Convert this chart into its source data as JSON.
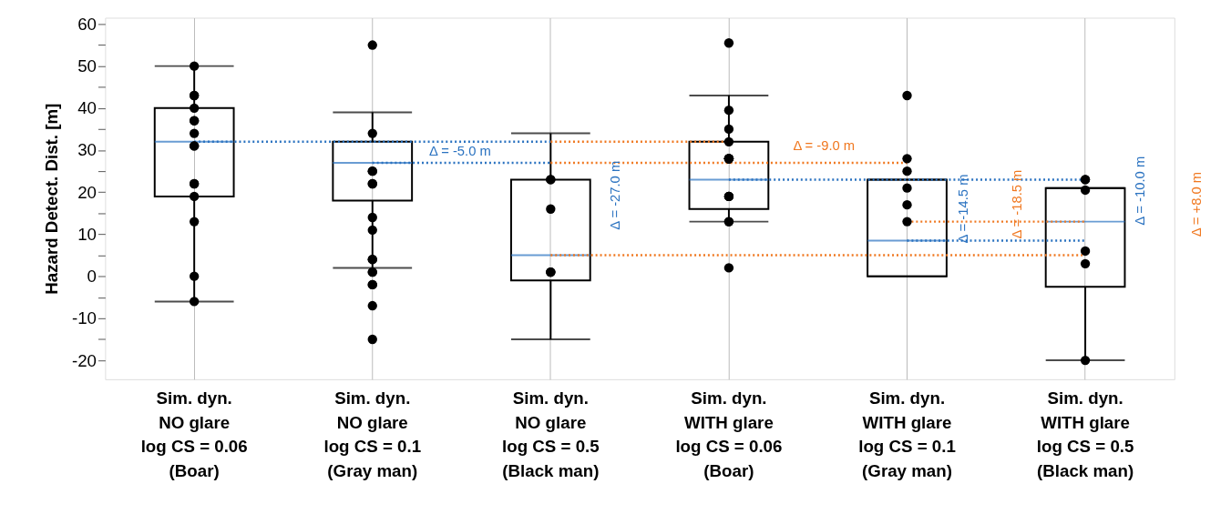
{
  "chart_data": {
    "type": "box",
    "ylabel": "Hazard Detect. Dist. [m]",
    "categories": [
      "Sim. dyn.\nNO glare\nlog CS = 0.06\n(Boar)",
      "Sim. dyn.\nNO glare\nlog CS = 0.1\n(Gray man)",
      "Sim. dyn.\nNO glare\nlog CS = 0.5\n(Black man)",
      "Sim. dyn.\nWITH glare\nlog CS = 0.06\n(Boar)",
      "Sim. dyn.\nWITH glare\nlog CS = 0.1\n(Gray man)",
      "Sim. dyn.\nWITH glare\nlog CS = 0.5\n(Black man)"
    ],
    "ylim": [
      -24.5,
      61.5
    ],
    "yticks": [
      -20,
      {
        "value": -15,
        "label": null
      },
      -10,
      {
        "value": -5,
        "label": null
      },
      0,
      {
        "value": 5,
        "label": null
      },
      10,
      {
        "value": 15,
        "label": null
      },
      20,
      {
        "value": 25,
        "label": null
      },
      30,
      {
        "value": 35,
        "label": null
      },
      40,
      {
        "value": 45,
        "label": null
      },
      50,
      {
        "value": 55,
        "label": null
      },
      60
    ],
    "grid": "x",
    "series": [
      {
        "color": "#2a72c0",
        "boxes": [
          {
            "low": -6,
            "q1": 19,
            "median": 32,
            "q3": 40,
            "high": 50
          },
          {
            "low": 2,
            "q1": 18,
            "median": 27,
            "q3": 32,
            "high": 39
          },
          {
            "low": -15,
            "q1": -1,
            "median": 5,
            "q3": 23,
            "high": 34
          },
          {
            "low": 13,
            "q1": 16,
            "median": 23,
            "q3": 32,
            "high": 43
          },
          {
            "low": 0,
            "q1": 0,
            "median": 8.5,
            "q3": 23,
            "high": 23
          },
          {
            "low": -20,
            "q1": -2.5,
            "median": 13,
            "q3": 21,
            "high": 21
          }
        ]
      },
      {
        "type": "line",
        "color": "#2a72c0",
        "line_style": "dotted",
        "x": [
          "Sim. dyn.\nNO glare\nlog CS = 0.06\n(Boar)",
          "Sim. dyn.\nNO glare\nlog CS = 0.5\n(Black man)"
        ],
        "values": [
          32,
          32
        ]
      },
      {
        "type": "line",
        "color": "#2a72c0",
        "line_style": "dotted",
        "x": [
          "Sim. dyn.\nNO glare\nlog CS = 0.1\n(Gray man)",
          "Sim. dyn.\nNO glare\nlog CS = 0.5\n(Black man)"
        ],
        "values": [
          27,
          27
        ]
      },
      {
        "type": "line",
        "color": "#f07820",
        "line_style": "dotted",
        "x": [
          "Sim. dyn.\nNO glare\nlog CS = 0.5\n(Black man)",
          "Sim. dyn.\nWITH glare\nlog CS = 0.06\n(Boar)"
        ],
        "values": [
          32,
          32
        ]
      },
      {
        "type": "line",
        "color": "#f07820",
        "line_style": "dotted",
        "x": [
          "Sim. dyn.\nNO glare\nlog CS = 0.5\n(Black man)",
          "Sim. dyn.\nWITH glare\nlog CS = 0.1\n(Gray man)"
        ],
        "values": [
          27,
          27
        ]
      },
      {
        "type": "line",
        "color": "#f07820",
        "line_style": "dotted",
        "x": [
          "Sim. dyn.\nNO glare\nlog CS = 0.5\n(Black man)",
          "Sim. dyn.\nWITH glare\nlog CS = 0.5\n(Black man)"
        ],
        "values": [
          5,
          5
        ]
      },
      {
        "type": "line",
        "color": "#2a72c0",
        "line_style": "dotted",
        "x": [
          "Sim. dyn.\nWITH glare\nlog CS = 0.06\n(Boar)",
          "Sim. dyn.\nWITH glare\nlog CS = 0.5\n(Black man)"
        ],
        "values": [
          23,
          23
        ]
      },
      {
        "type": "line",
        "color": "#2a72c0",
        "line_style": "dotted",
        "x": [
          "Sim. dyn.\nWITH glare\nlog CS = 0.1\n(Gray man)",
          "Sim. dyn.\nWITH glare\nlog CS = 0.5\n(Black man)"
        ],
        "values": [
          8.5,
          8.5
        ]
      },
      {
        "type": "line",
        "color": "#f07820",
        "line_style": "dotted",
        "x": [
          "Sim. dyn.\nWITH glare\nlog CS = 0.1\n(Gray man)",
          "Sim. dyn.\nWITH glare\nlog CS = 0.5\n(Black man)"
        ],
        "values": [
          13,
          13
        ]
      },
      {
        "type": "scatter",
        "color": "#000000",
        "marker": "circle",
        "x": [
          "Sim. dyn.\nNO glare\nlog CS = 0.06\n(Boar)",
          "Sim. dyn.\nNO glare\nlog CS = 0.06\n(Boar)",
          "Sim. dyn.\nNO glare\nlog CS = 0.06\n(Boar)",
          "Sim. dyn.\nNO glare\nlog CS = 0.06\n(Boar)",
          "Sim. dyn.\nNO glare\nlog CS = 0.06\n(Boar)",
          "Sim. dyn.\nNO glare\nlog CS = 0.06\n(Boar)",
          "Sim. dyn.\nNO glare\nlog CS = 0.06\n(Boar)",
          "Sim. dyn.\nNO glare\nlog CS = 0.06\n(Boar)",
          "Sim. dyn.\nNO glare\nlog CS = 0.06\n(Boar)",
          "Sim. dyn.\nNO glare\nlog CS = 0.06\n(Boar)",
          "Sim. dyn.\nNO glare\nlog CS = 0.06\n(Boar)",
          "Sim. dyn.\nNO glare\nlog CS = 0.06\n(Boar)",
          "Sim. dyn.\nNO glare\nlog CS = 0.06\n(Boar)",
          "Sim. dyn.\nNO glare\nlog CS = 0.06\n(Boar)",
          "Sim. dyn.\nNO glare\nlog CS = 0.06\n(Boar)",
          "Sim. dyn.\nNO glare\nlog CS = 0.1\n(Gray man)",
          "Sim. dyn.\nNO glare\nlog CS = 0.1\n(Gray man)",
          "Sim. dyn.\nNO glare\nlog CS = 0.1\n(Gray man)",
          "Sim. dyn.\nNO glare\nlog CS = 0.1\n(Gray man)",
          "Sim. dyn.\nNO glare\nlog CS = 0.1\n(Gray man)",
          "Sim. dyn.\nNO glare\nlog CS = 0.1\n(Gray man)",
          "Sim. dyn.\nNO glare\nlog CS = 0.1\n(Gray man)",
          "Sim. dyn.\nNO glare\nlog CS = 0.1\n(Gray man)",
          "Sim. dyn.\nNO glare\nlog CS = 0.1\n(Gray man)",
          "Sim. dyn.\nNO glare\nlog CS = 0.1\n(Gray man)",
          "Sim. dyn.\nNO glare\nlog CS = 0.1\n(Gray man)",
          "Sim. dyn.\nNO glare\nlog CS = 0.1\n(Gray man)",
          "Sim. dyn.\nNO glare\nlog CS = 0.1\n(Gray man)",
          "Sim. dyn.\nNO glare\nlog CS = 0.1\n(Gray man)",
          "Sim. dyn.\nNO glare\nlog CS = 0.1\n(Gray man)",
          "Sim. dyn.\nNO glare\nlog CS = 0.1\n(Gray man)",
          "Sim. dyn.\nNO glare\nlog CS = 0.5\n(Black man)",
          "Sim. dyn.\nNO glare\nlog CS = 0.5\n(Black man)",
          "Sim. dyn.\nNO glare\nlog CS = 0.5\n(Black man)",
          "Sim. dyn.\nNO glare\nlog CS = 0.5\n(Black man)",
          "Sim. dyn.\nNO glare\nlog CS = 0.5\n(Black man)",
          "Sim. dyn.\nNO glare\nlog CS = 0.5\n(Black man)",
          "Sim. dyn.\nWITH glare\nlog CS = 0.06\n(Boar)",
          "Sim. dyn.\nWITH glare\nlog CS = 0.06\n(Boar)",
          "Sim. dyn.\nWITH glare\nlog CS = 0.06\n(Boar)",
          "Sim. dyn.\nWITH glare\nlog CS = 0.06\n(Boar)",
          "Sim. dyn.\nWITH glare\nlog CS = 0.06\n(Boar)",
          "Sim. dyn.\nWITH glare\nlog CS = 0.06\n(Boar)",
          "Sim. dyn.\nWITH glare\nlog CS = 0.06\n(Boar)",
          "Sim. dyn.\nWITH glare\nlog CS = 0.06\n(Boar)",
          "Sim. dyn.\nWITH glare\nlog CS = 0.06\n(Boar)",
          "Sim. dyn.\nWITH glare\nlog CS = 0.06\n(Boar)",
          "Sim. dyn.\nWITH glare\nlog CS = 0.06\n(Boar)",
          "Sim. dyn.\nWITH glare\nlog CS = 0.06\n(Boar)",
          "Sim. dyn.\nWITH glare\nlog CS = 0.06\n(Boar)",
          "Sim. dyn.\nWITH glare\nlog CS = 0.06\n(Boar)",
          "Sim. dyn.\nWITH glare\nlog CS = 0.06\n(Boar)",
          "Sim. dyn.\nWITH glare\nlog CS = 0.06\n(Boar)",
          "Sim. dyn.\nWITH glare\nlog CS = 0.1\n(Gray man)",
          "Sim. dyn.\nWITH glare\nlog CS = 0.1\n(Gray man)",
          "Sim. dyn.\nWITH glare\nlog CS = 0.1\n(Gray man)",
          "Sim. dyn.\nWITH glare\nlog CS = 0.1\n(Gray man)",
          "Sim. dyn.\nWITH glare\nlog CS = 0.1\n(Gray man)",
          "Sim. dyn.\nWITH glare\nlog CS = 0.1\n(Gray man)",
          "Sim. dyn.\nWITH glare\nlog CS = 0.5\n(Black man)",
          "Sim. dyn.\nWITH glare\nlog CS = 0.5\n(Black man)",
          "Sim. dyn.\nWITH glare\nlog CS = 0.5\n(Black man)",
          "Sim. dyn.\nWITH glare\nlog CS = 0.5\n(Black man)",
          "Sim. dyn.\nWITH glare\nlog CS = 0.5\n(Black man)",
          "Sim. dyn.\nWITH glare\nlog CS = 0.5\n(Black man)"
        ],
        "values": [
          50,
          43,
          43,
          40,
          37,
          37,
          34,
          31,
          31,
          22,
          22,
          19,
          13,
          0,
          -6,
          55,
          34,
          25,
          25,
          22,
          22,
          14,
          11,
          4,
          4,
          1,
          1,
          -2,
          -2,
          -7,
          -15,
          23,
          23,
          16,
          1,
          1,
          1,
          55.5,
          39.5,
          35,
          32,
          28,
          28,
          28,
          28,
          28,
          28,
          19,
          19,
          19,
          13,
          13,
          2,
          43,
          28,
          25,
          21,
          17,
          13,
          23,
          23,
          20.5,
          6,
          3,
          -20
        ]
      }
    ],
    "annotations": [
      "Δ = -5.0 m",
      "Δ = -27.0 m",
      "Δ = -9.0 m",
      "Δ = -14.5 m",
      "Δ = -18.5 m",
      "Δ = -10.0 m",
      "Δ = +8.0 m"
    ]
  }
}
